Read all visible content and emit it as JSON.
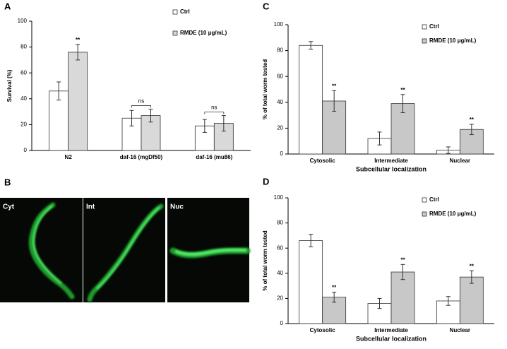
{
  "chart_data": [
    {
      "type": "bar",
      "panel_label": "A",
      "ylabel": "Survival (%)",
      "categories": [
        "N2",
        "daf-16 (mgDf50)",
        "daf-16 (mu86)"
      ],
      "series": [
        {
          "name": "Ctrl",
          "color": "#ffffff",
          "values": [
            46,
            25,
            19
          ],
          "errors": [
            7,
            6,
            5
          ]
        },
        {
          "name": "RMDE (10 μg/mL)",
          "color": "#d9d9d9",
          "values": [
            76,
            27,
            21
          ],
          "errors": [
            6,
            5,
            6
          ]
        }
      ],
      "annotations": [
        "**",
        "ns",
        "ns"
      ],
      "ylim": [
        0,
        100
      ],
      "yticks": [
        0,
        20,
        40,
        60,
        80,
        100
      ]
    },
    {
      "type": "bar",
      "panel_label": "C",
      "ylabel": "% of total worm tested",
      "xlabel": "Subcellular localization",
      "categories": [
        "Cytosolic",
        "Intermediate",
        "Nuclear"
      ],
      "series": [
        {
          "name": "Ctrl",
          "color": "#ffffff",
          "values": [
            84,
            12,
            3
          ],
          "errors": [
            3,
            5,
            2.5
          ]
        },
        {
          "name": "RMDE (10 μg/mL)",
          "color": "#c8c8c8",
          "values": [
            41,
            39,
            19
          ],
          "errors": [
            8,
            7,
            4
          ]
        }
      ],
      "annotations": [
        "**",
        "**",
        "**"
      ],
      "ylim": [
        0,
        100
      ],
      "yticks": [
        0,
        20,
        40,
        60,
        80,
        100
      ]
    },
    {
      "type": "bar",
      "panel_label": "D",
      "ylabel": "% of total worm tested",
      "xlabel": "Subcellular localization",
      "categories": [
        "Cytosolic",
        "Intermediate",
        "Nuclear"
      ],
      "series": [
        {
          "name": "Ctrl",
          "color": "#ffffff",
          "values": [
            66,
            16,
            18
          ],
          "errors": [
            5,
            4,
            3.5
          ]
        },
        {
          "name": "RMDE (10 μg/mL)",
          "color": "#c8c8c8",
          "values": [
            21,
            41,
            37
          ],
          "errors": [
            4,
            6,
            5
          ]
        }
      ],
      "annotations": [
        "**",
        "**",
        "**"
      ],
      "ylim": [
        0,
        100
      ],
      "yticks": [
        0,
        20,
        40,
        60,
        80,
        100
      ]
    }
  ],
  "image_panel": {
    "panel_label": "B",
    "tiles": [
      "Cyt",
      "Int",
      "Nuc"
    ]
  }
}
